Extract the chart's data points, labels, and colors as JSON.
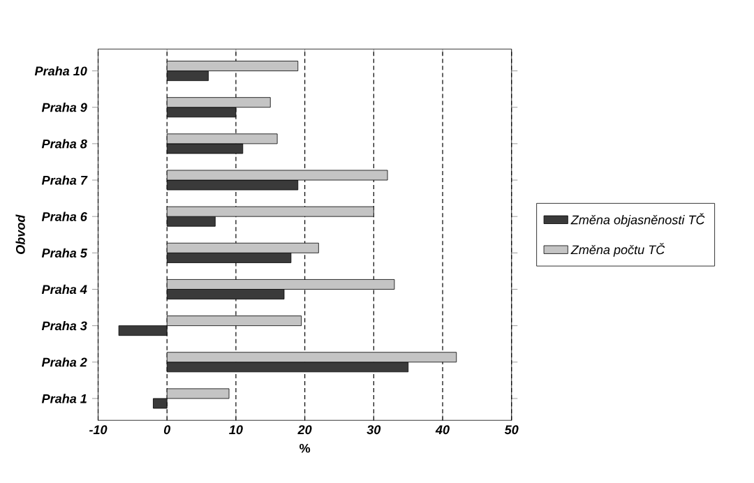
{
  "chart_data": {
    "type": "bar",
    "orientation": "horizontal",
    "xlabel": "%",
    "ylabel": "Obvod",
    "categories": [
      "Praha 10",
      "Praha 9",
      "Praha 8",
      "Praha 7",
      "Praha 6",
      "Praha 5",
      "Praha 4",
      "Praha 3",
      "Praha 2",
      "Praha 1"
    ],
    "series": [
      {
        "name": "Změna objasněnosti TČ",
        "color": "#3a3a3a",
        "values": [
          6,
          10,
          11,
          19,
          7,
          18,
          17,
          -7,
          35,
          -2
        ]
      },
      {
        "name": "Změna počtu TČ",
        "color": "#c4c4c4",
        "values": [
          19,
          15,
          16,
          32,
          30,
          22,
          33,
          19.5,
          42,
          9
        ]
      }
    ],
    "xlim": [
      -10,
      50
    ],
    "xticks": [
      -10,
      0,
      10,
      20,
      30,
      40,
      50
    ],
    "grid": "x",
    "legend": "right"
  }
}
